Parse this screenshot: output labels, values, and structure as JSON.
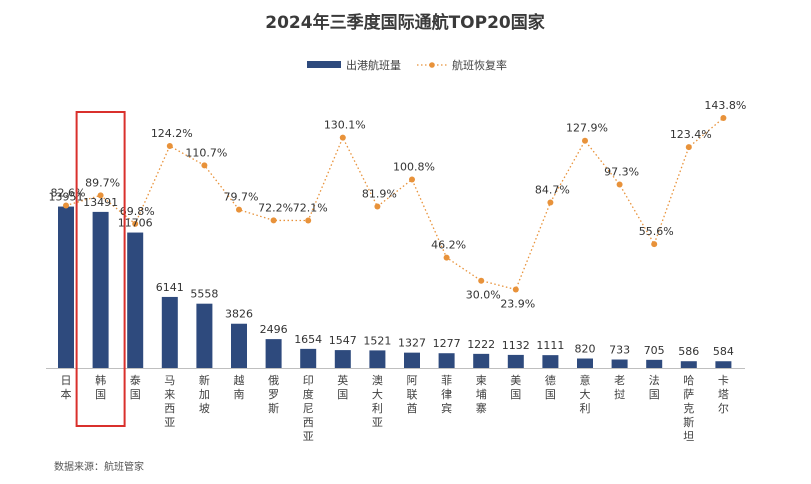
{
  "chart_data": {
    "type": "bar",
    "title": "2024年三季度国际通航TOP20国家",
    "legend_position": "top-center",
    "categories": [
      "日本",
      "韩国",
      "泰国",
      "马来西亚",
      "新加坡",
      "越南",
      "俄罗斯",
      "印度尼西亚",
      "英国",
      "澳大利亚",
      "阿联酋",
      "菲律宾",
      "柬埔寨",
      "美国",
      "德国",
      "意大利",
      "老挝",
      "法国",
      "哈萨克斯坦",
      "卡塔尔"
    ],
    "series": [
      {
        "name": "出港航班量",
        "type": "bar",
        "color": "#2e4a7d",
        "values": [
          13951,
          13491,
          11706,
          6141,
          5558,
          3826,
          2496,
          1654,
          1547,
          1521,
          1327,
          1277,
          1222,
          1132,
          1111,
          820,
          733,
          705,
          586,
          584
        ]
      },
      {
        "name": "航班恢复率",
        "type": "line",
        "color": "#e8923a",
        "line_style": "dotted",
        "values": [
          82.6,
          89.7,
          69.8,
          124.2,
          110.7,
          79.7,
          72.2,
          72.1,
          130.1,
          81.9,
          100.8,
          46.2,
          30.0,
          23.9,
          84.7,
          127.9,
          97.3,
          55.6,
          123.4,
          143.8
        ],
        "labels": [
          "82.6%",
          "89.7%",
          "69.8%",
          "124.2%",
          "110.7%",
          "79.7%",
          "72.2%",
          "72.1%",
          "130.1%",
          "81.9%",
          "100.8%",
          "46.2%",
          "30.0%",
          "23.9%",
          "84.7%",
          "127.9%",
          "97.3%",
          "55.6%",
          "123.4%",
          "143.8%"
        ]
      }
    ],
    "highlight": {
      "category": "韩国",
      "color": "#d9302c"
    },
    "source": "数据来源：航班管家",
    "grid": false
  }
}
